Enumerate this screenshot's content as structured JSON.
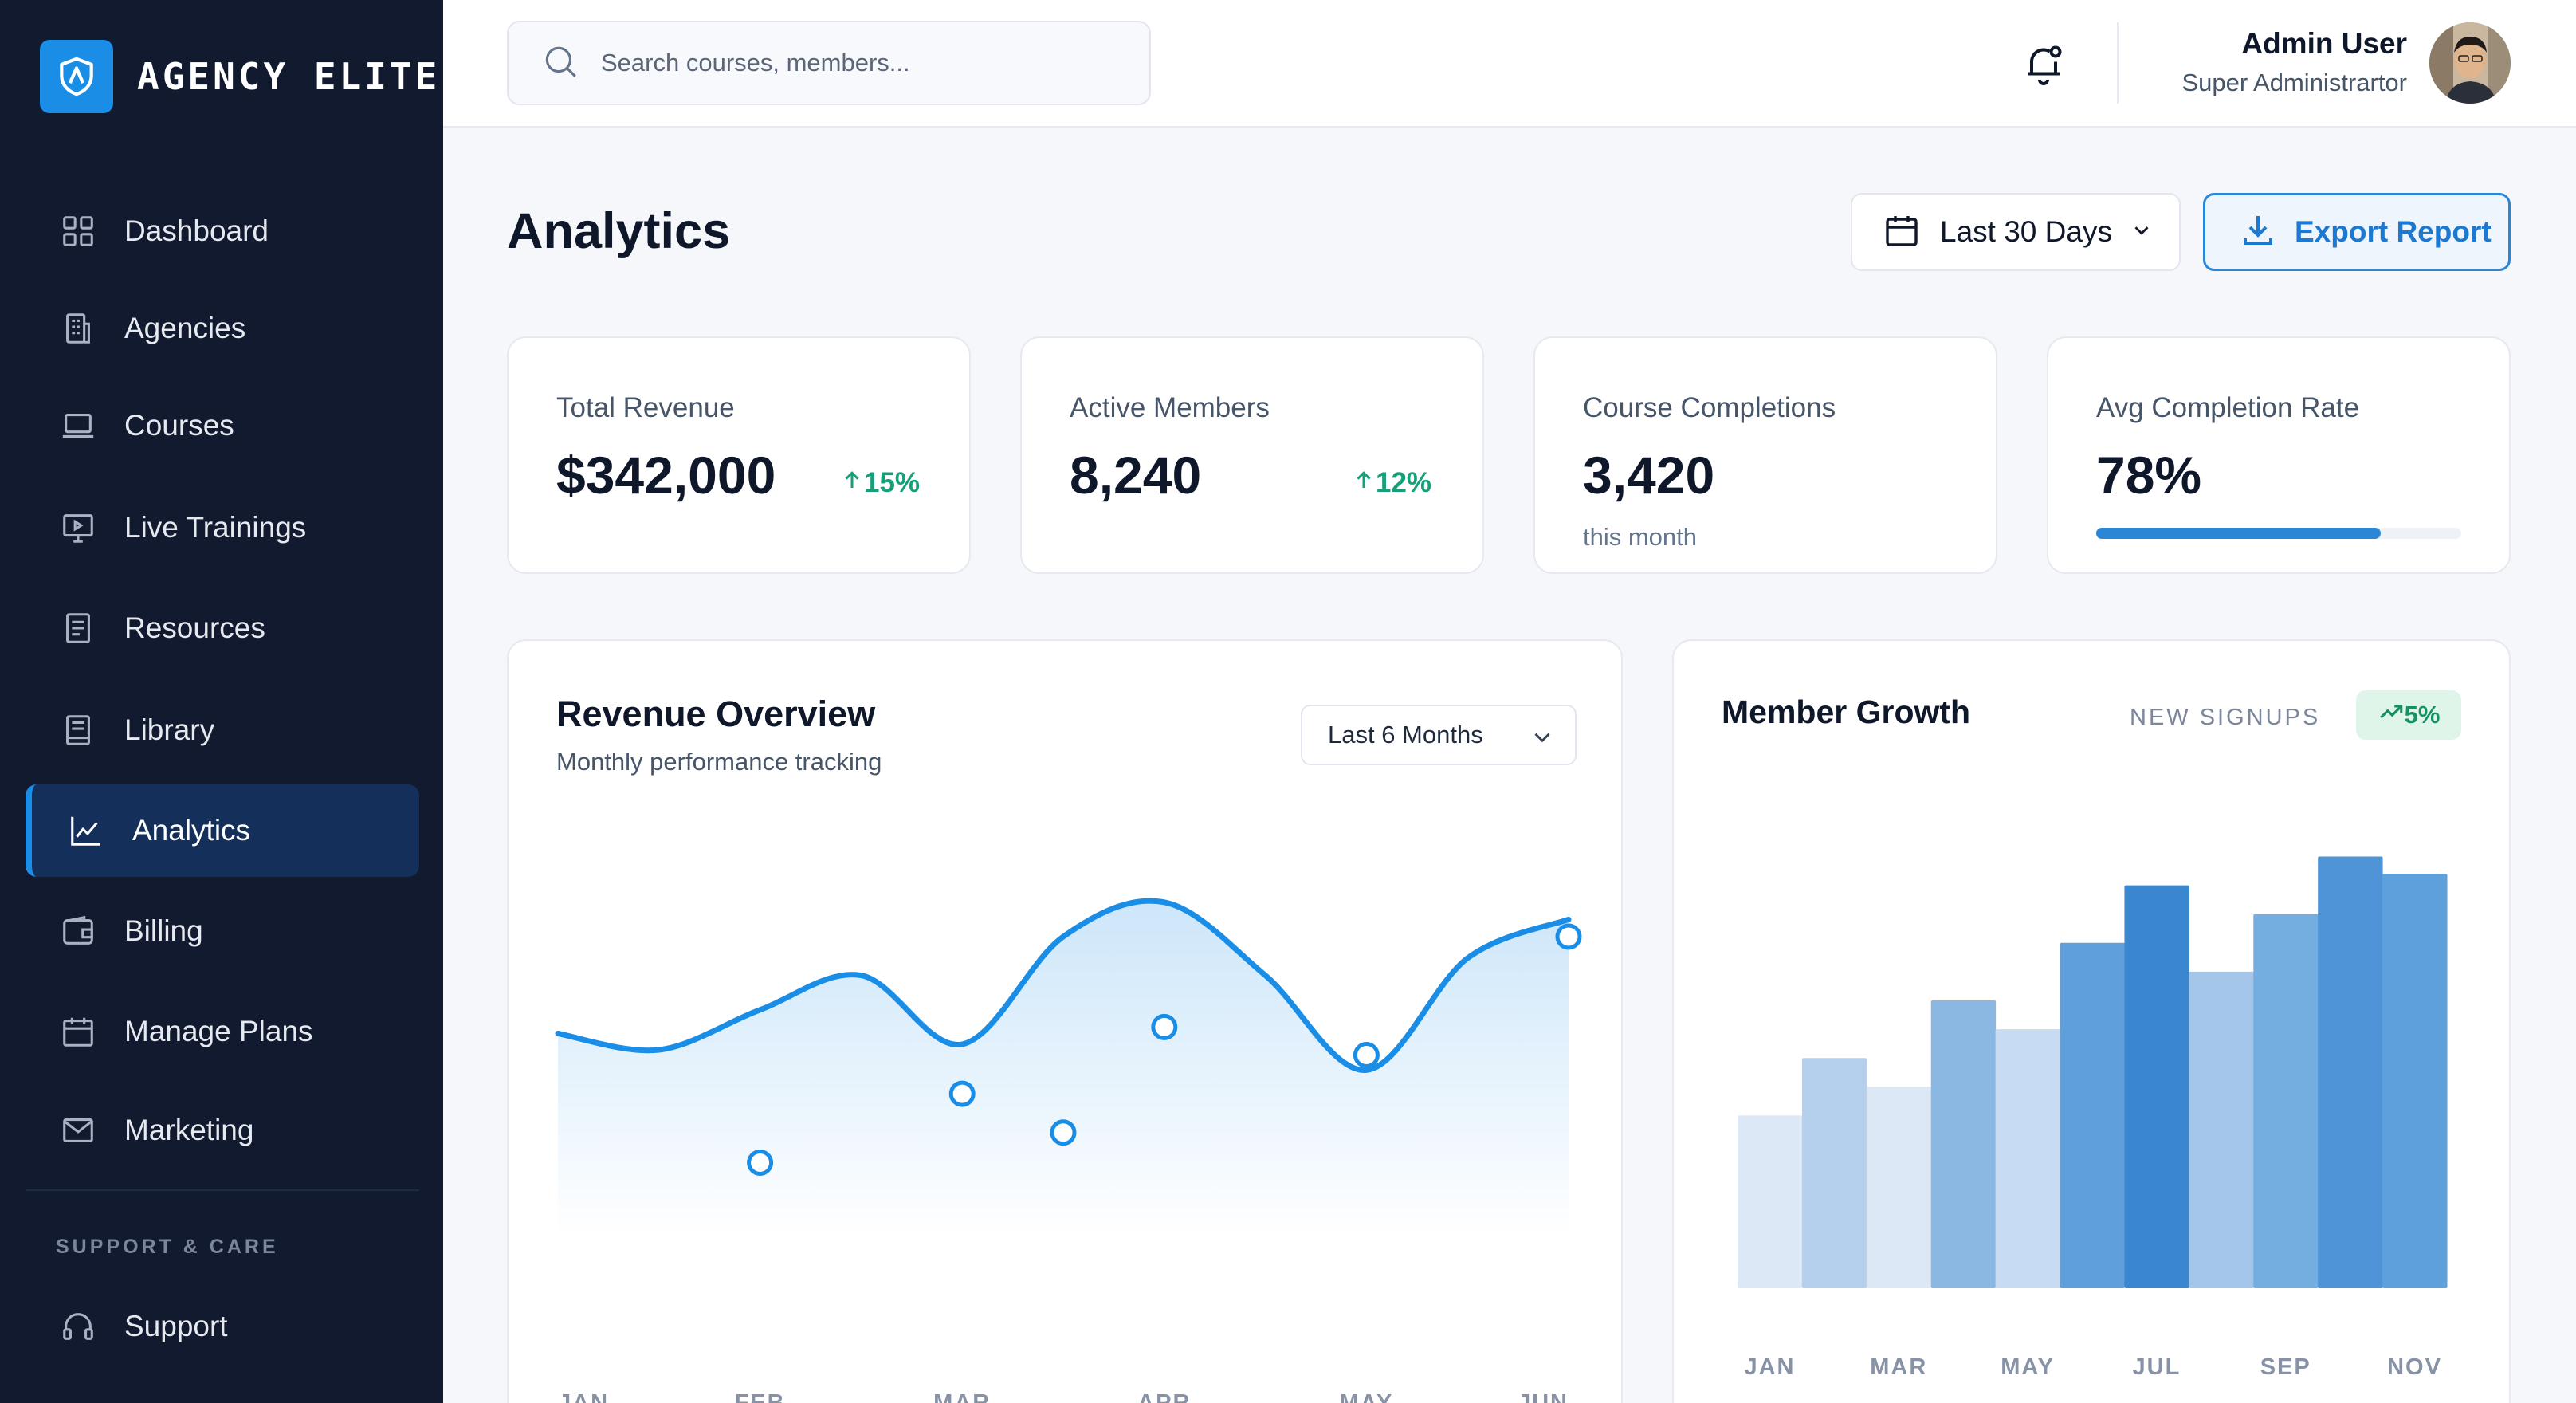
{
  "brand": {
    "name": "AGENCY ELITE",
    "logo_icon": "shield-icon"
  },
  "sidebar": {
    "items": [
      {
        "label": "Dashboard",
        "icon": "grid-icon",
        "active": false
      },
      {
        "label": "Agencies",
        "icon": "building-icon",
        "active": false
      },
      {
        "label": "Courses",
        "icon": "laptop-icon",
        "active": false
      },
      {
        "label": "Live Trainings",
        "icon": "video-icon",
        "active": false
      },
      {
        "label": "Resources",
        "icon": "document-icon",
        "active": false
      },
      {
        "label": "Library",
        "icon": "book-icon",
        "active": false
      },
      {
        "label": "Analytics",
        "icon": "chart-line-icon",
        "active": true
      },
      {
        "label": "Billing",
        "icon": "wallet-icon",
        "active": false
      },
      {
        "label": "Manage Plans",
        "icon": "calendar-icon",
        "active": false
      },
      {
        "label": "Marketing",
        "icon": "mail-icon",
        "active": false
      }
    ],
    "support_section_title": "SUPPORT & CARE",
    "support_items": [
      {
        "label": "Support",
        "icon": "headset-icon"
      }
    ],
    "accent_color": "#1a8ee6"
  },
  "header": {
    "search_placeholder": "Search courses, members...",
    "user_name": "Admin User",
    "user_role": "Super Administrartor"
  },
  "page": {
    "title": "Analytics",
    "date_range_label": "Last 30 Days",
    "export_label": "Export Report"
  },
  "stats": [
    {
      "label": "Total Revenue",
      "value": "$342,000",
      "trend": "15%",
      "trend_direction": "up"
    },
    {
      "label": "Active Members",
      "value": "8,240",
      "trend": "12%",
      "trend_direction": "up"
    },
    {
      "label": "Course Completions",
      "value": "3,420",
      "note": "this month"
    },
    {
      "label": "Avg Completion Rate",
      "value": "78%",
      "progress": 0.78
    }
  ],
  "revenue_panel": {
    "title": "Revenue Overview",
    "subtitle": "Monthly performance tracking",
    "range_label": "Last 6 Months"
  },
  "member_panel": {
    "title": "Member Growth",
    "meta_label": "NEW SIGNUPS",
    "badge": "5%"
  },
  "chart_data": [
    {
      "type": "line",
      "title": "Revenue Overview",
      "x_tick_labels": [
        "JAN",
        "FEB",
        "MAR",
        "APR",
        "MAY",
        "JUN"
      ],
      "x": [
        0,
        0.5,
        1,
        1.5,
        2,
        2.5,
        3,
        3.5,
        4,
        4.5,
        5
      ],
      "values": [
        6.25,
        5.87,
        6.8,
        7.6,
        6.0,
        8.5,
        9.3,
        7.6,
        5.4,
        8.0,
        8.9
      ],
      "markers": [
        [
          1,
          3.25
        ],
        [
          2,
          4.85
        ],
        [
          2.5,
          3.95
        ],
        [
          3,
          6.4
        ],
        [
          4,
          5.75
        ],
        [
          5,
          8.5
        ]
      ],
      "color": "#1a8ee6",
      "ylim": [
        0,
        10
      ],
      "grid": false
    },
    {
      "type": "bar",
      "title": "Member Growth",
      "x_tick_labels": [
        "JAN",
        "MAR",
        "MAY",
        "JUL",
        "SEP",
        "NOV"
      ],
      "categories": [
        "JAN",
        "FEB",
        "MAR",
        "APR",
        "MAY",
        "JUN",
        "JUL",
        "AUG",
        "SEP",
        "OCT",
        "NOV"
      ],
      "values": [
        30,
        40,
        35,
        50,
        45,
        60,
        70,
        55,
        65,
        75,
        72
      ],
      "colors": [
        "#dde8f6",
        "#b5d0ec",
        "#dde8f6",
        "#8bb7e3",
        "#c7dcf2",
        "#5fa0dc",
        "#3a87d0",
        "#a3c6ea",
        "#74ade0",
        "#4f94d6",
        "#5ea0dc"
      ],
      "ylim": [
        0,
        100
      ],
      "grid": false
    }
  ]
}
